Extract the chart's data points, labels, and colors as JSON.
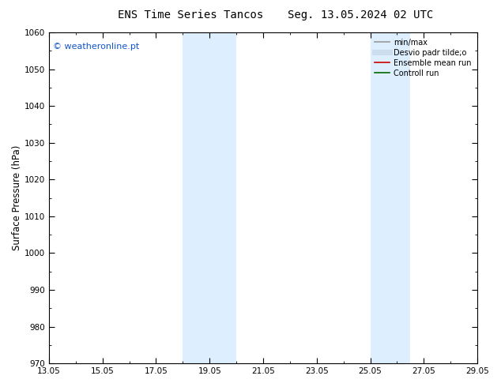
{
  "title_left": "ENS Time Series Tancos",
  "title_right": "Seg. 13.05.2024 02 UTC",
  "ylabel": "Surface Pressure (hPa)",
  "ylim": [
    970,
    1060
  ],
  "yticks": [
    970,
    980,
    990,
    1000,
    1010,
    1020,
    1030,
    1040,
    1050,
    1060
  ],
  "xlim": [
    13.0,
    29.0
  ],
  "xtick_positions": [
    13.0,
    15.0,
    17.0,
    19.0,
    21.0,
    23.0,
    25.0,
    27.0,
    29.0
  ],
  "xtick_labels": [
    "13.05",
    "15.05",
    "17.05",
    "19.05",
    "21.05",
    "23.05",
    "25.05",
    "27.05",
    "29.05"
  ],
  "shaded_bands": [
    {
      "x_start": 18.0,
      "x_end": 20.0
    },
    {
      "x_start": 25.0,
      "x_end": 26.5
    }
  ],
  "shade_color": "#ddeeff",
  "watermark_text": "© weatheronline.pt",
  "watermark_color": "#1155cc",
  "legend_entries": [
    {
      "label": "min/max",
      "color": "#999999",
      "linewidth": 1.2,
      "linestyle": "-"
    },
    {
      "label": "Desvio padr tilde;o",
      "color": "#ccddef",
      "linewidth": 5,
      "linestyle": "-"
    },
    {
      "label": "Ensemble mean run",
      "color": "#cc0000",
      "linewidth": 1.2,
      "linestyle": "-"
    },
    {
      "label": "Controll run",
      "color": "#006600",
      "linewidth": 1.2,
      "linestyle": "-"
    }
  ],
  "bg_color": "#ffffff",
  "plot_bg_color": "#ffffff",
  "title_fontsize": 10,
  "tick_fontsize": 7.5,
  "ylabel_fontsize": 8.5,
  "watermark_fontsize": 8,
  "legend_fontsize": 7
}
